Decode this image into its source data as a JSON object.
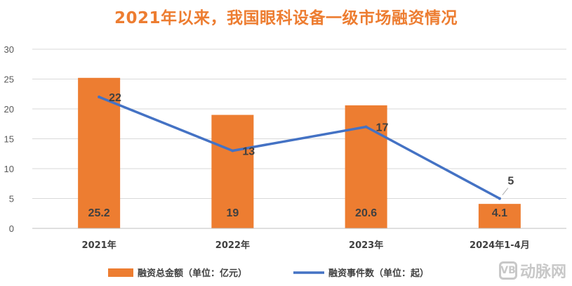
{
  "chart_data": {
    "type": "bar",
    "title": "2021年以来，我国眼科设备一级市场融资情况",
    "categories": [
      "2021年",
      "2022年",
      "2023年",
      "2024年1-4月"
    ],
    "series": [
      {
        "name": "融资总金额（单位：亿元）",
        "type": "bar",
        "color": "#ED7D31",
        "values": [
          25.2,
          19,
          20.6,
          4.1
        ],
        "labels": [
          "25.2",
          "19",
          "20.6",
          "4.1"
        ]
      },
      {
        "name": "融资事件数（单位：起）",
        "type": "line",
        "color": "#4472C4",
        "values": [
          22,
          13,
          17,
          5
        ],
        "labels": [
          "22",
          "13",
          "17",
          "5"
        ]
      }
    ],
    "yticks": [
      "0",
      "5",
      "10",
      "15",
      "20",
      "25",
      "30"
    ],
    "ylim": [
      0,
      30
    ],
    "grid": true,
    "legend": "bottom"
  },
  "watermark": {
    "logo": "VB",
    "text": "动脉网"
  }
}
